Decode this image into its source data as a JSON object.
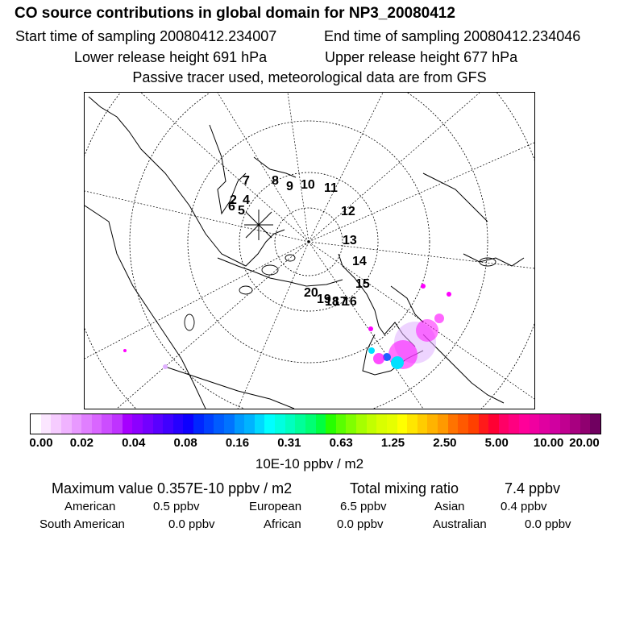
{
  "header": {
    "title": "CO  source contributions in global domain for NP3_20080412",
    "start_time": "Start time of sampling 20080412.234007",
    "end_time": "End time of sampling 20080412.234046",
    "lower_height": "Lower release height  691 hPa",
    "upper_height": "Upper release height  677 hPa",
    "tracer_note": "Passive tracer used, meteorological data are from GFS"
  },
  "map": {
    "trajectory_labels": [
      "7",
      "8",
      "9",
      "10",
      "11",
      "12",
      "13",
      "14",
      "15",
      "16",
      "2",
      "4",
      "5",
      "6",
      "17",
      "18",
      "19",
      "20"
    ],
    "colors": {
      "pink": "#ff00ff",
      "lavender": "#e0b0ff",
      "cyan": "#00e0ff",
      "blue": "#2060ff"
    }
  },
  "colorbar": {
    "colors": [
      "#ffffff",
      "#fbe6ff",
      "#f6ccff",
      "#f0b3ff",
      "#e899ff",
      "#e07fff",
      "#d966ff",
      "#cc4dff",
      "#bf33ff",
      "#a600ff",
      "#8c00ff",
      "#7300ff",
      "#5900ff",
      "#4000ff",
      "#2600ff",
      "#0d00ff",
      "#0026ff",
      "#0040ff",
      "#005cff",
      "#0073ff",
      "#0099ff",
      "#00b3ff",
      "#00d9ff",
      "#00ffff",
      "#00ffe0",
      "#00ffbf",
      "#00ff99",
      "#00ff73",
      "#00ff40",
      "#26ff00",
      "#59ff00",
      "#80ff00",
      "#a6ff00",
      "#c2ff00",
      "#d9ff00",
      "#e6ff00",
      "#ffff00",
      "#ffe600",
      "#ffcc00",
      "#ffb300",
      "#ff9900",
      "#ff7300",
      "#ff5900",
      "#ff4000",
      "#ff1a1a",
      "#ff0033",
      "#ff0066",
      "#ff0080",
      "#ff0099",
      "#f000a0",
      "#e000a0",
      "#d000a0",
      "#c00090",
      "#a80080",
      "#900070",
      "#700060"
    ],
    "tick_labels": [
      "0.00",
      "0.02",
      "0.04",
      "0.08",
      "0.16",
      "0.31",
      "0.63",
      "1.25",
      "2.50",
      "5.00",
      "10.00",
      "20.00"
    ],
    "unit": "10E-10 ppbv / m2"
  },
  "summary": {
    "max_value": "Maximum value  0.357E-10 ppbv / m2",
    "total_label": "Total mixing ratio",
    "total_value": "7.4 ppbv",
    "regions": [
      {
        "name": "American",
        "value": "0.5 ppbv"
      },
      {
        "name": "European",
        "value": "6.5 ppbv"
      },
      {
        "name": "Asian",
        "value": "0.4 ppbv"
      },
      {
        "name": "South American",
        "value": "0.0 ppbv"
      },
      {
        "name": "African",
        "value": "0.0 ppbv"
      },
      {
        "name": "Australian",
        "value": "0.0 ppbv"
      }
    ]
  }
}
